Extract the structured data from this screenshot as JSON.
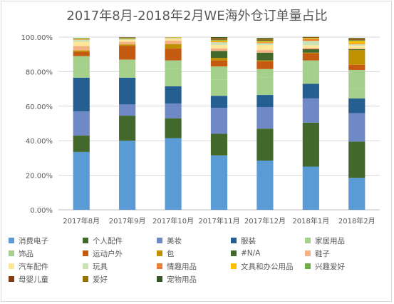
{
  "chart_data": {
    "type": "bar",
    "stacked": true,
    "title": "2017年8月-2018年2月WE海外仓订单量占比",
    "xlabel": "",
    "ylabel": "",
    "ylim": [
      0,
      100
    ],
    "grid": true,
    "legend_position": "bottom",
    "y_ticks": [
      "0.00%",
      "20.00%",
      "40.00%",
      "60.00%",
      "80.00%",
      "100.00%"
    ],
    "categories": [
      "2017年8月",
      "2017年9月",
      "2017年10月",
      "2017年11月",
      "2017年12月",
      "2018年1月",
      "2018年2月"
    ],
    "series": [
      {
        "name": "消费电子",
        "color": "#5b9bd5",
        "values": [
          33.5,
          40.0,
          41.5,
          31.5,
          28.5,
          25.0,
          18.5
        ]
      },
      {
        "name": "个人配件",
        "color": "#43682b",
        "values": [
          9.5,
          14.5,
          11.5,
          12.5,
          18.5,
          25.5,
          21.0
        ]
      },
      {
        "name": "美妆",
        "color": "#6f88c6",
        "values": [
          14.0,
          6.5,
          8.5,
          15.0,
          12.5,
          14.0,
          16.5
        ]
      },
      {
        "name": "服装",
        "color": "#255e91",
        "values": [
          19.5,
          15.5,
          10.0,
          7.0,
          7.0,
          8.5,
          8.5
        ]
      },
      {
        "name": "家居用品",
        "color": "#a5d08c",
        "values": [
          5.5,
          5.5,
          10.0,
          9.5,
          10.0,
          7.0,
          6.0
        ]
      },
      {
        "name": "饰品",
        "color": "#a5d08c",
        "values": [
          7.0,
          5.0,
          5.0,
          7.5,
          5.0,
          6.5,
          10.5
        ]
      },
      {
        "name": "运动户外",
        "color": "#c55a11",
        "values": [
          2.5,
          8.0,
          7.0,
          3.5,
          4.5,
          4.0,
          3.0
        ]
      },
      {
        "name": "包",
        "color": "#bf9000",
        "values": [
          0.8,
          0.8,
          2.5,
          1.5,
          0.5,
          0.5,
          8.5
        ]
      },
      {
        "name": "#N/A",
        "color": "#43682b",
        "values": [
          0.0,
          0.0,
          0.0,
          4.0,
          4.5,
          2.0,
          0.5
        ]
      },
      {
        "name": "鞋子",
        "color": "#f4b183",
        "values": [
          2.5,
          1.5,
          2.0,
          1.5,
          1.5,
          0.8,
          0.5
        ]
      },
      {
        "name": "汽车配件",
        "color": "#ffe699",
        "values": [
          2.5,
          1.0,
          1.0,
          2.0,
          3.0,
          1.5,
          1.5
        ]
      },
      {
        "name": "玩具",
        "color": "#c9e3b5",
        "values": [
          1.2,
          0.5,
          0.5,
          1.5,
          1.0,
          2.5,
          0.8
        ]
      },
      {
        "name": "情趣用品",
        "color": "#ed7d31",
        "values": [
          0.3,
          0.2,
          0.2,
          0.3,
          0.5,
          1.0,
          0.4
        ]
      },
      {
        "name": "文具和办公用品",
        "color": "#ffc000",
        "values": [
          0.2,
          0.2,
          0.2,
          0.7,
          0.5,
          0.5,
          1.5
        ]
      },
      {
        "name": "兴趣爱好",
        "color": "#70ad47",
        "values": [
          0.5,
          0.5,
          0.1,
          0.5,
          0.5,
          0.2,
          0.5
        ]
      },
      {
        "name": "母婴儿童",
        "color": "#843c0c",
        "values": [
          0.0,
          0.2,
          0.0,
          0.5,
          0.5,
          0.3,
          0.5
        ]
      },
      {
        "name": "爱好",
        "color": "#997300",
        "values": [
          0.0,
          0.0,
          0.0,
          0.5,
          0.5,
          0.2,
          0.5
        ]
      },
      {
        "name": "宠物用品",
        "color": "#375623",
        "values": [
          0.0,
          0.1,
          0.0,
          0.5,
          0.5,
          0.1,
          0.3
        ]
      }
    ]
  }
}
